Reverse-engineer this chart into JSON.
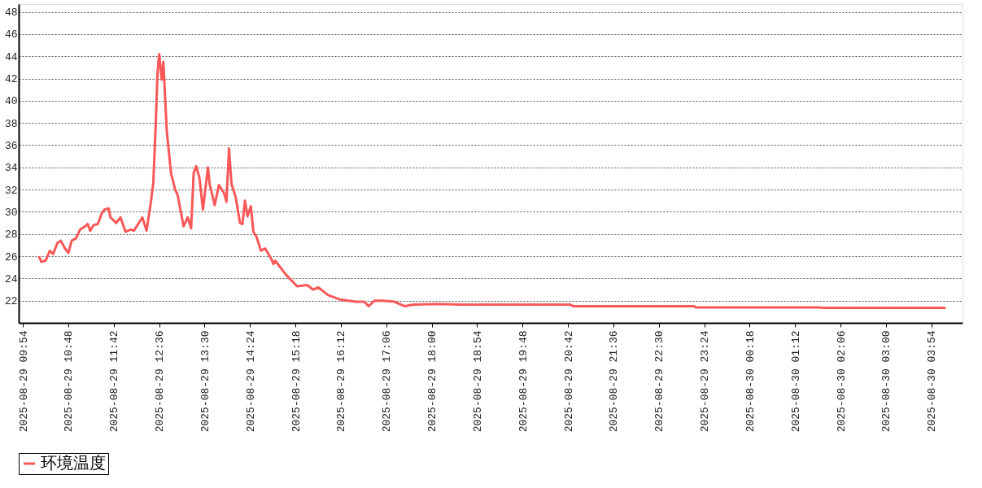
{
  "chart_data": {
    "type": "line",
    "x": [
      "2025-08-29T10:13",
      "2025-08-29T10:16",
      "2025-08-29T10:21",
      "2025-08-29T10:26",
      "2025-08-29T10:30",
      "2025-08-29T10:35",
      "2025-08-29T10:39",
      "2025-08-29T10:44",
      "2025-08-29T10:48",
      "2025-08-29T10:52",
      "2025-08-29T10:57",
      "2025-08-29T11:02",
      "2025-08-29T11:08",
      "2025-08-29T11:11",
      "2025-08-29T11:14",
      "2025-08-29T11:18",
      "2025-08-29T11:23",
      "2025-08-29T11:28",
      "2025-08-29T11:31",
      "2025-08-29T11:36",
      "2025-08-29T11:38",
      "2025-08-29T11:45",
      "2025-08-29T11:50",
      "2025-08-29T11:56",
      "2025-08-29T12:02",
      "2025-08-29T12:06",
      "2025-08-29T12:11",
      "2025-08-29T12:16",
      "2025-08-29T12:21",
      "2025-08-29T12:26",
      "2025-08-29T12:29",
      "2025-08-29T12:32",
      "2025-08-29T12:34",
      "2025-08-29T12:36",
      "2025-08-29T12:39",
      "2025-08-29T12:41",
      "2025-08-29T12:45",
      "2025-08-29T12:50",
      "2025-08-29T12:55",
      "2025-08-29T12:58",
      "2025-08-29T13:02",
      "2025-08-29T13:05",
      "2025-08-29T13:10",
      "2025-08-29T13:14",
      "2025-08-29T13:17",
      "2025-08-29T13:20",
      "2025-08-29T13:24",
      "2025-08-29T13:28",
      "2025-08-29T13:34",
      "2025-08-29T13:36",
      "2025-08-29T13:42",
      "2025-08-29T13:47",
      "2025-08-29T13:53",
      "2025-08-29T13:56",
      "2025-08-29T13:59",
      "2025-08-29T14:02",
      "2025-08-29T14:07",
      "2025-08-29T14:12",
      "2025-08-29T14:15",
      "2025-08-29T14:18",
      "2025-08-29T14:21",
      "2025-08-29T14:25",
      "2025-08-29T14:28",
      "2025-08-29T14:32",
      "2025-08-29T14:37",
      "2025-08-29T14:42",
      "2025-08-29T14:49",
      "2025-08-29T14:52",
      "2025-08-29T14:54",
      "2025-08-29T15:06",
      "2025-08-29T15:20",
      "2025-08-29T15:32",
      "2025-08-29T15:39",
      "2025-08-29T15:45",
      "2025-08-29T15:57",
      "2025-08-29T16:11",
      "2025-08-29T16:30",
      "2025-08-29T16:40",
      "2025-08-29T16:45",
      "2025-08-29T16:52",
      "2025-08-29T17:02",
      "2025-08-29T17:16",
      "2025-08-29T17:28",
      "2025-08-29T17:38",
      "2025-08-29T18:07",
      "2025-08-29T18:36",
      "2025-08-29T20:45",
      "2025-08-29T20:48",
      "2025-08-29T23:12",
      "2025-08-29T23:14",
      "2025-08-30T01:42",
      "2025-08-30T01:44",
      "2025-08-30T04:11"
    ],
    "series": [
      {
        "name": "环境温度",
        "color": "#f95858",
        "values": [
          26.0,
          25.5,
          25.6,
          26.5,
          26.2,
          27.2,
          27.4,
          26.7,
          26.3,
          27.4,
          27.6,
          28.4,
          28.7,
          28.9,
          28.3,
          28.8,
          28.9,
          29.9,
          30.2,
          30.3,
          29.5,
          29.0,
          29.5,
          28.2,
          28.4,
          28.3,
          28.9,
          29.5,
          28.3,
          30.8,
          32.6,
          38.0,
          42.5,
          44.2,
          41.9,
          43.5,
          37.3,
          33.5,
          32.0,
          31.5,
          29.9,
          28.7,
          29.5,
          28.5,
          33.5,
          34.1,
          33.0,
          30.2,
          34.0,
          32.5,
          30.6,
          32.4,
          31.7,
          30.9,
          35.7,
          32.5,
          31.3,
          29.0,
          28.9,
          31.0,
          29.6,
          30.5,
          28.2,
          27.7,
          26.5,
          26.7,
          25.8,
          25.3,
          25.6,
          24.4,
          23.3,
          23.4,
          23.0,
          23.2,
          22.5,
          22.1,
          21.9,
          21.9,
          21.5,
          22.0,
          22.0,
          21.9,
          21.5,
          21.65,
          21.7,
          21.65,
          21.65,
          21.5,
          21.5,
          21.4,
          21.4,
          21.35,
          21.35
        ]
      }
    ],
    "xlim": [
      "2025-08-29T09:49",
      "2025-08-30T04:31"
    ],
    "xticks": [
      {
        "value": "2025-08-29T09:54",
        "label": "2025-08-29  09:54"
      },
      {
        "value": "2025-08-29T10:48",
        "label": "2025-08-29  10:48"
      },
      {
        "value": "2025-08-29T11:42",
        "label": "2025-08-29  11:42"
      },
      {
        "value": "2025-08-29T12:36",
        "label": "2025-08-29  12:36"
      },
      {
        "value": "2025-08-29T13:30",
        "label": "2025-08-29  13:30"
      },
      {
        "value": "2025-08-29T14:24",
        "label": "2025-08-29  14:24"
      },
      {
        "value": "2025-08-29T15:18",
        "label": "2025-08-29  15:18"
      },
      {
        "value": "2025-08-29T16:12",
        "label": "2025-08-29  16:12"
      },
      {
        "value": "2025-08-29T17:06",
        "label": "2025-08-29  17:06"
      },
      {
        "value": "2025-08-29T18:00",
        "label": "2025-08-29  18:00"
      },
      {
        "value": "2025-08-29T18:54",
        "label": "2025-08-29  18:54"
      },
      {
        "value": "2025-08-29T19:48",
        "label": "2025-08-29  19:48"
      },
      {
        "value": "2025-08-29T20:42",
        "label": "2025-08-29  20:42"
      },
      {
        "value": "2025-08-29T21:36",
        "label": "2025-08-29  21:36"
      },
      {
        "value": "2025-08-29T22:30",
        "label": "2025-08-29  22:30"
      },
      {
        "value": "2025-08-29T23:24",
        "label": "2025-08-29  23:24"
      },
      {
        "value": "2025-08-30T00:18",
        "label": "2025-08-30  00:18"
      },
      {
        "value": "2025-08-30T01:12",
        "label": "2025-08-30  01:12"
      },
      {
        "value": "2025-08-30T02:06",
        "label": "2025-08-30  02:06"
      },
      {
        "value": "2025-08-30T03:00",
        "label": "2025-08-30  03:00"
      },
      {
        "value": "2025-08-30T03:54",
        "label": "2025-08-30  03:54"
      }
    ],
    "ylim": [
      20,
      48.7
    ],
    "yticks": [
      22,
      24,
      26,
      28,
      30,
      32,
      34,
      36,
      38,
      40,
      42,
      44,
      46,
      48
    ],
    "grid": "y",
    "legend": "bottom",
    "line_style": "solid"
  }
}
